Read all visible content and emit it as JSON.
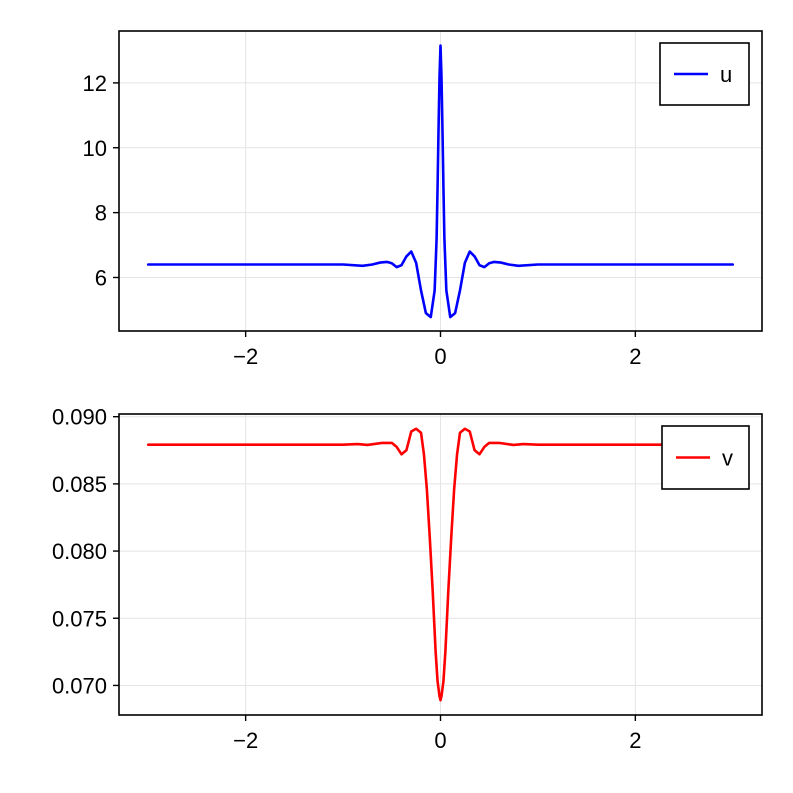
{
  "chart_data": [
    {
      "type": "line",
      "title": "",
      "xlabel": "",
      "ylabel": "",
      "xlim": [
        -3.3,
        3.3
      ],
      "ylim": [
        4.35,
        13.6
      ],
      "grid": true,
      "legend_placement": "top-right",
      "xticks": [
        {
          "value": -2,
          "label": "−2"
        },
        {
          "value": 0,
          "label": "0"
        },
        {
          "value": 2,
          "label": "2"
        }
      ],
      "yticks": [
        {
          "value": 6,
          "label": "6"
        },
        {
          "value": 8,
          "label": "8"
        },
        {
          "value": 10,
          "label": "10"
        },
        {
          "value": 12,
          "label": "12"
        }
      ],
      "series": [
        {
          "name": "u",
          "color": "#0000ff",
          "x": [
            -3.0,
            -2.0,
            -1.0,
            -0.8,
            -0.7,
            -0.62,
            -0.55,
            -0.5,
            -0.45,
            -0.4,
            -0.35,
            -0.3,
            -0.25,
            -0.2,
            -0.15,
            -0.1,
            -0.06,
            -0.04,
            -0.03,
            -0.02,
            -0.01,
            0.0,
            0.01,
            0.02,
            0.03,
            0.04,
            0.06,
            0.1,
            0.15,
            0.2,
            0.25,
            0.3,
            0.35,
            0.4,
            0.45,
            0.5,
            0.55,
            0.62,
            0.7,
            0.8,
            1.0,
            2.0,
            3.0
          ],
          "y": [
            6.4,
            6.4,
            6.4,
            6.36,
            6.4,
            6.46,
            6.48,
            6.44,
            6.32,
            6.38,
            6.65,
            6.8,
            6.45,
            5.6,
            4.9,
            4.78,
            5.6,
            7.2,
            8.8,
            10.6,
            12.2,
            13.15,
            12.2,
            10.6,
            8.8,
            7.2,
            5.6,
            4.78,
            4.9,
            5.6,
            6.45,
            6.8,
            6.65,
            6.38,
            6.32,
            6.44,
            6.48,
            6.46,
            6.4,
            6.36,
            6.4,
            6.4,
            6.4
          ]
        }
      ]
    },
    {
      "type": "line",
      "title": "",
      "xlabel": "",
      "ylabel": "",
      "xlim": [
        -3.3,
        3.3
      ],
      "ylim": [
        0.0678,
        0.0902
      ],
      "grid": true,
      "legend_placement": "top-right",
      "xticks": [
        {
          "value": -2,
          "label": "−2"
        },
        {
          "value": 0,
          "label": "0"
        },
        {
          "value": 2,
          "label": "2"
        }
      ],
      "yticks": [
        {
          "value": 0.07,
          "label": "0.070"
        },
        {
          "value": 0.075,
          "label": "0.075"
        },
        {
          "value": 0.08,
          "label": "0.080"
        },
        {
          "value": 0.085,
          "label": "0.085"
        },
        {
          "value": 0.09,
          "label": "0.090"
        }
      ],
      "series": [
        {
          "name": "v",
          "color": "#ff0000",
          "x": [
            -3.0,
            -2.0,
            -1.0,
            -0.85,
            -0.75,
            -0.6,
            -0.5,
            -0.45,
            -0.4,
            -0.35,
            -0.3,
            -0.25,
            -0.2,
            -0.17,
            -0.14,
            -0.11,
            -0.08,
            -0.05,
            -0.03,
            -0.01,
            0.0,
            0.01,
            0.03,
            0.05,
            0.08,
            0.11,
            0.14,
            0.17,
            0.2,
            0.25,
            0.3,
            0.35,
            0.4,
            0.45,
            0.5,
            0.6,
            0.75,
            0.85,
            1.0,
            2.0,
            3.0
          ],
          "y": [
            0.08792,
            0.08792,
            0.08792,
            0.08796,
            0.0879,
            0.08805,
            0.08805,
            0.08775,
            0.0872,
            0.0875,
            0.0889,
            0.0891,
            0.0888,
            0.0872,
            0.0846,
            0.081,
            0.077,
            0.0725,
            0.0703,
            0.0692,
            0.0689,
            0.0692,
            0.0703,
            0.0725,
            0.077,
            0.081,
            0.0846,
            0.0872,
            0.0888,
            0.0891,
            0.0889,
            0.0875,
            0.0872,
            0.08775,
            0.08805,
            0.08805,
            0.0879,
            0.08796,
            0.08792,
            0.08792,
            0.08792
          ]
        }
      ]
    }
  ]
}
